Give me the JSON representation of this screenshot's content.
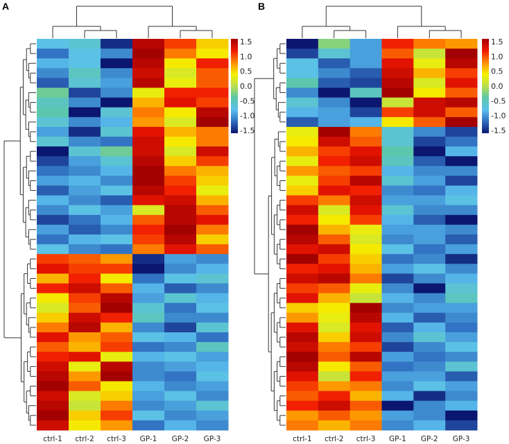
{
  "chart_data": [
    {
      "type": "heatmap",
      "panel": "A",
      "columns": [
        "ctrl-1",
        "ctrl-2",
        "ctrl-3",
        "GP-1",
        "GP-2",
        "GP-3"
      ],
      "colorbar": {
        "ticks": [
          "1.5",
          "1.0",
          "0.5",
          "0.0",
          "-0.5",
          "-1.0",
          "-1.5"
        ],
        "range": [
          -1.5,
          1.5
        ]
      },
      "cluster_split_row": 22,
      "values": [
        [
          -0.7,
          -0.6,
          -1.4,
          1.4,
          1.0,
          0.5
        ],
        [
          -1.1,
          -0.7,
          -1.0,
          1.5,
          0.8,
          0.4
        ],
        [
          -0.8,
          -0.7,
          -1.5,
          1.4,
          0.4,
          1.1
        ],
        [
          -1.0,
          -0.5,
          -1.0,
          1.3,
          0.2,
          0.9
        ],
        [
          -1.2,
          -0.6,
          -0.9,
          1.4,
          0.3,
          0.9
        ],
        [
          -0.3,
          -1.3,
          -1.0,
          0.3,
          1.1,
          1.1
        ],
        [
          -0.5,
          -1.0,
          -1.6,
          0.6,
          1.2,
          1.0
        ],
        [
          -0.4,
          -1.5,
          -0.6,
          0.8,
          0.4,
          1.4
        ],
        [
          -0.6,
          -1.0,
          -0.8,
          0.7,
          0.2,
          1.5
        ],
        [
          -0.9,
          -1.4,
          -0.6,
          1.2,
          0.6,
          0.8
        ],
        [
          -0.6,
          -1.0,
          -1.1,
          1.3,
          0.4,
          0.8
        ],
        [
          -1.5,
          -0.6,
          -0.3,
          1.3,
          0.2,
          1.3
        ],
        [
          -1.3,
          -0.9,
          -0.6,
          1.4,
          0.5,
          1.0
        ],
        [
          -1.1,
          -1.0,
          -0.8,
          1.5,
          0.8,
          0.6
        ],
        [
          -0.9,
          -0.8,
          -1.0,
          1.5,
          1.0,
          0.5
        ],
        [
          -1.2,
          -0.9,
          -0.7,
          1.4,
          1.1,
          0.3
        ],
        [
          -0.8,
          -1.0,
          -1.2,
          1.2,
          1.3,
          0.6
        ],
        [
          -1.0,
          -0.7,
          -0.9,
          0.2,
          1.4,
          0.9
        ],
        [
          -1.3,
          -1.1,
          -0.8,
          0.9,
          1.4,
          1.2
        ],
        [
          -0.9,
          -1.2,
          -1.0,
          1.1,
          1.5,
          0.8
        ],
        [
          -1.1,
          -0.8,
          -0.7,
          1.0,
          1.4,
          0.5
        ],
        [
          -0.7,
          -1.0,
          -1.1,
          0.8,
          1.2,
          0.9
        ],
        [
          1.0,
          0.9,
          0.7,
          -1.4,
          -0.9,
          -1.0
        ],
        [
          1.2,
          1.0,
          1.0,
          -1.5,
          -1.0,
          -0.8
        ],
        [
          0.6,
          1.1,
          0.4,
          -1.1,
          -0.7,
          -0.6
        ],
        [
          1.1,
          1.3,
          0.9,
          -0.8,
          -1.2,
          -1.0
        ],
        [
          0.4,
          1.0,
          1.4,
          -0.9,
          -0.6,
          -0.8
        ],
        [
          0.2,
          0.9,
          1.5,
          -0.6,
          -1.1,
          -0.7
        ],
        [
          0.5,
          1.3,
          1.1,
          -0.5,
          -1.0,
          -1.0
        ],
        [
          0.8,
          1.4,
          0.6,
          -1.0,
          -1.3,
          -0.6
        ],
        [
          1.2,
          0.7,
          0.9,
          -0.7,
          -0.8,
          -1.1
        ],
        [
          0.9,
          0.6,
          1.0,
          -1.1,
          -1.0,
          -0.5
        ],
        [
          1.1,
          1.2,
          0.3,
          -0.8,
          -0.7,
          -0.9
        ],
        [
          1.3,
          0.3,
          1.4,
          -1.0,
          -0.9,
          -0.8
        ],
        [
          1.4,
          0.7,
          1.5,
          -1.0,
          -1.1,
          -0.7
        ],
        [
          1.5,
          0.9,
          0.4,
          -0.8,
          -1.0,
          -0.9
        ],
        [
          1.3,
          0.2,
          0.5,
          -0.9,
          -0.7,
          -1.0
        ],
        [
          1.4,
          0.1,
          0.8,
          -1.0,
          -0.9,
          -0.6
        ],
        [
          1.5,
          0.5,
          1.0,
          -0.7,
          -1.0,
          -0.9
        ],
        [
          1.3,
          0.4,
          0.7,
          -1.1,
          -0.8,
          -1.0
        ]
      ]
    },
    {
      "type": "heatmap",
      "panel": "B",
      "columns": [
        "ctrl-1",
        "ctrl-2",
        "ctrl-3",
        "GP-1",
        "GP-2",
        "GP-3"
      ],
      "colorbar": {
        "ticks": [
          "1.5",
          "1.0",
          "0.5",
          "0.0",
          "-0.5",
          "-1.0",
          "-1.5"
        ],
        "range": [
          -1.5,
          1.5
        ]
      },
      "cluster_split_row": 9,
      "values": [
        [
          -1.6,
          -0.2,
          -0.9,
          1.1,
          0.8,
          0.7
        ],
        [
          -1.3,
          -0.6,
          -0.9,
          0.9,
          0.1,
          1.5
        ],
        [
          -0.7,
          -1.2,
          -0.9,
          1.2,
          0.3,
          1.4
        ],
        [
          -0.7,
          -1.0,
          -1.2,
          1.3,
          0.6,
          1.0
        ],
        [
          -0.4,
          -1.2,
          -1.3,
          1.4,
          0.2,
          1.2
        ],
        [
          -1.0,
          -1.5,
          -0.5,
          1.5,
          0.4,
          0.9
        ],
        [
          -0.6,
          -1.0,
          -1.5,
          0.1,
          1.3,
          1.4
        ],
        [
          -0.8,
          -0.9,
          -1.3,
          1.0,
          1.3,
          0.9
        ],
        [
          -1.2,
          -0.9,
          -0.8,
          0.4,
          0.9,
          1.5
        ],
        [
          0.3,
          1.5,
          0.8,
          -0.6,
          -1.0,
          -1.3
        ],
        [
          0.4,
          1.3,
          0.9,
          -0.6,
          -1.3,
          -1.1
        ],
        [
          0.6,
          1.0,
          1.2,
          -0.4,
          -1.6,
          -0.8
        ],
        [
          0.3,
          1.1,
          1.3,
          -0.5,
          -1.2,
          -1.6
        ],
        [
          0.7,
          0.9,
          1.0,
          -0.8,
          -1.0,
          -1.0
        ],
        [
          0.3,
          1.0,
          1.4,
          -0.6,
          -0.9,
          -1.3
        ],
        [
          0.5,
          1.2,
          1.1,
          -1.0,
          -1.1,
          -0.8
        ],
        [
          1.0,
          0.8,
          1.3,
          -0.9,
          -0.9,
          -0.7
        ],
        [
          1.3,
          0.2,
          1.2,
          -0.6,
          -1.0,
          -1.0
        ],
        [
          1.1,
          0.4,
          1.0,
          -0.8,
          -1.2,
          -1.5
        ],
        [
          1.5,
          0.6,
          0.3,
          -0.9,
          -0.9,
          -1.0
        ],
        [
          1.4,
          0.9,
          0.2,
          -1.0,
          -0.9,
          -1.2
        ],
        [
          1.2,
          1.3,
          0.4,
          -0.7,
          -1.1,
          -0.9
        ],
        [
          1.5,
          1.0,
          0.5,
          -1.1,
          -1.0,
          -1.4
        ],
        [
          1.1,
          1.2,
          0.6,
          -0.9,
          -0.7,
          -1.0
        ],
        [
          1.3,
          1.4,
          0.8,
          -1.3,
          -1.0,
          -0.8
        ],
        [
          1.0,
          0.9,
          0.3,
          -1.0,
          -1.5,
          -0.6
        ],
        [
          1.2,
          0.6,
          0.1,
          -0.8,
          -1.0,
          -0.5
        ],
        [
          0.5,
          0.4,
          1.5,
          -1.0,
          -0.9,
          -0.9
        ],
        [
          0.7,
          0.3,
          1.4,
          -0.8,
          -1.2,
          -1.0
        ],
        [
          1.2,
          0.2,
          1.2,
          -1.2,
          -0.8,
          -1.1
        ],
        [
          1.4,
          0.5,
          1.3,
          -1.0,
          -0.6,
          -0.9
        ],
        [
          1.3,
          0.8,
          1.0,
          -1.3,
          -1.0,
          -0.7
        ],
        [
          1.5,
          0.9,
          1.4,
          -0.9,
          -1.1,
          -1.0
        ],
        [
          1.4,
          0.4,
          0.9,
          -1.1,
          -1.0,
          -0.6
        ],
        [
          1.2,
          0.1,
          1.1,
          -0.9,
          -0.9,
          -1.2
        ],
        [
          1.0,
          0.7,
          0.8,
          -1.0,
          -0.7,
          -0.9
        ],
        [
          0.9,
          1.1,
          0.6,
          -0.8,
          -1.4,
          -1.0
        ],
        [
          1.1,
          1.3,
          0.9,
          -1.6,
          -1.0,
          -0.8
        ],
        [
          0.7,
          0.9,
          0.7,
          -0.9,
          -1.0,
          -1.5
        ],
        [
          0.8,
          0.6,
          0.8,
          -1.0,
          -0.8,
          -1.3
        ]
      ]
    }
  ],
  "colors": {
    "scale": [
      "#0b1670",
      "#2f6fc0",
      "#5bc0ee",
      "#5cc7a8",
      "#b9e04c",
      "#f5f000",
      "#ff8a00",
      "#f01800",
      "#a30000"
    ]
  }
}
